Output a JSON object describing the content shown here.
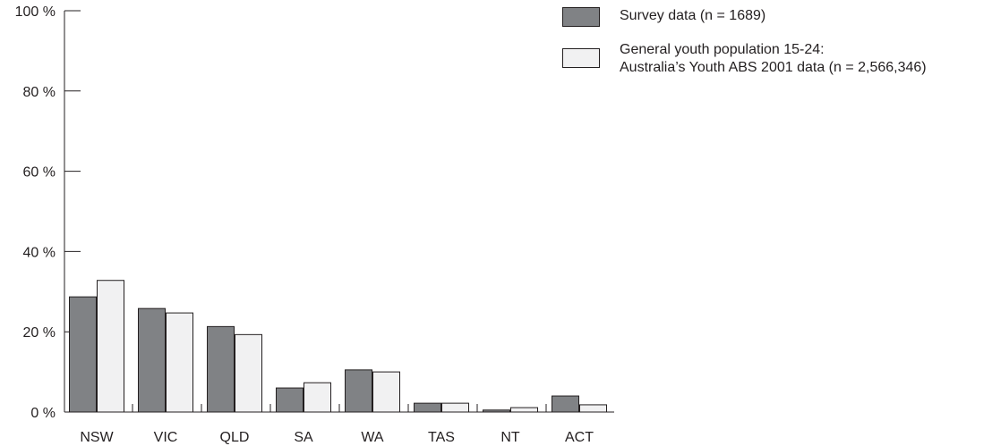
{
  "chart_data": {
    "type": "bar",
    "categories": [
      "NSW",
      "VIC",
      "QLD",
      "SA",
      "WA",
      "TAS",
      "NT",
      "ACT"
    ],
    "series": [
      {
        "name": "Survey data (n = 1689)",
        "color": "#808285",
        "values": [
          28.7,
          25.8,
          21.3,
          6.0,
          10.5,
          2.2,
          0.5,
          4.0
        ]
      },
      {
        "name": "General youth population 15-24: Australia’s Youth ABS 2001 data (n = 2,566,346)",
        "color": "#f1f1f2",
        "values": [
          32.8,
          24.7,
          19.3,
          7.3,
          10.0,
          2.2,
          1.1,
          1.8
        ]
      }
    ],
    "yticks": [
      "0 %",
      "20 %",
      "40 %",
      "60 %",
      "80 %",
      "100 %"
    ],
    "ylim": [
      0,
      100
    ],
    "title": "",
    "xlabel": "",
    "ylabel": "",
    "grid": false,
    "legend_position": "top-right"
  },
  "legend": {
    "item1": "Survey data (n = 1689)",
    "item2_line1": "General youth population 15-24:",
    "item2_line2": "Australia’s Youth ABS 2001 data (n = 2,566,346)"
  }
}
